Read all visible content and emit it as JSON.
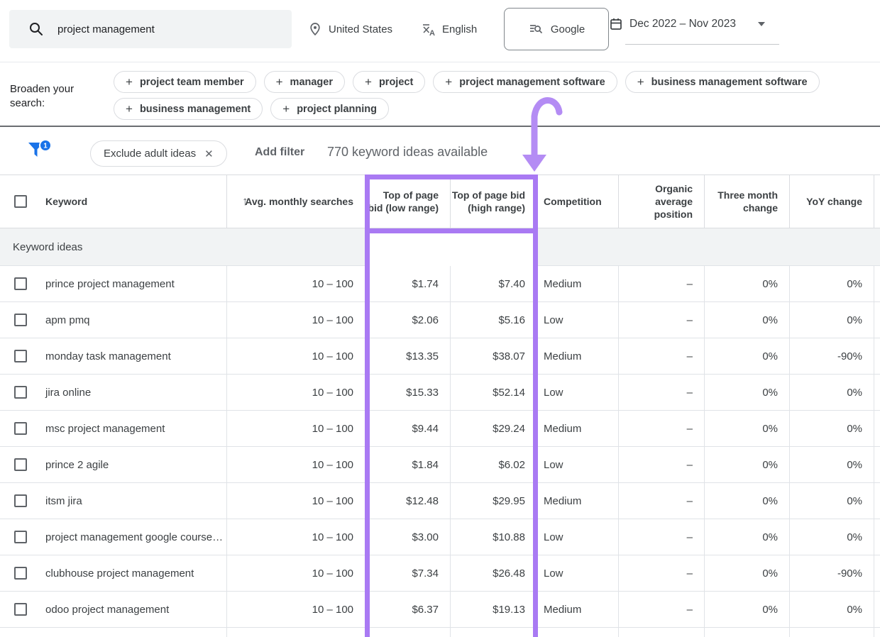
{
  "topbar": {
    "search_value": "project management",
    "location": "United States",
    "language": "English",
    "network": "Google",
    "date_range": "Dec 2022 – Nov 2023"
  },
  "broaden": {
    "label": "Broaden your search:",
    "chips": [
      "project team member",
      "manager",
      "project",
      "project management software",
      "business management software",
      "business management",
      "project planning"
    ]
  },
  "filterbar": {
    "filter_count": "1",
    "exclude_chip_label": "Exclude adult ideas",
    "add_filter_label": "Add filter",
    "ideas_available": "770 keyword ideas available"
  },
  "table": {
    "section_label": "Keyword ideas",
    "columns": [
      "Keyword",
      "Avg. monthly searches",
      "Top of page bid (low range)",
      "Top of page bid (high range)",
      "Competition",
      "Organic average position",
      "Three month change",
      "YoY change"
    ],
    "rows": [
      {
        "keyword": "prince project management",
        "avg": "10 – 100",
        "low": "$1.74",
        "high": "$7.40",
        "comp": "Medium",
        "organic": "–",
        "three": "0%",
        "yoy": "0%"
      },
      {
        "keyword": "apm pmq",
        "avg": "10 – 100",
        "low": "$2.06",
        "high": "$5.16",
        "comp": "Low",
        "organic": "–",
        "three": "0%",
        "yoy": "0%"
      },
      {
        "keyword": "monday task management",
        "avg": "10 – 100",
        "low": "$13.35",
        "high": "$38.07",
        "comp": "Medium",
        "organic": "–",
        "three": "0%",
        "yoy": "-90%"
      },
      {
        "keyword": "jira online",
        "avg": "10 – 100",
        "low": "$15.33",
        "high": "$52.14",
        "comp": "Low",
        "organic": "–",
        "three": "0%",
        "yoy": "0%"
      },
      {
        "keyword": "msc project management",
        "avg": "10 – 100",
        "low": "$9.44",
        "high": "$29.24",
        "comp": "Medium",
        "organic": "–",
        "three": "0%",
        "yoy": "0%"
      },
      {
        "keyword": "prince 2 agile",
        "avg": "10 – 100",
        "low": "$1.84",
        "high": "$6.02",
        "comp": "Low",
        "organic": "–",
        "three": "0%",
        "yoy": "0%"
      },
      {
        "keyword": "itsm jira",
        "avg": "10 – 100",
        "low": "$12.48",
        "high": "$29.95",
        "comp": "Medium",
        "organic": "–",
        "three": "0%",
        "yoy": "0%"
      },
      {
        "keyword": "project management google course…",
        "avg": "10 – 100",
        "low": "$3.00",
        "high": "$10.88",
        "comp": "Low",
        "organic": "–",
        "three": "0%",
        "yoy": "0%"
      },
      {
        "keyword": "clubhouse project management",
        "avg": "10 – 100",
        "low": "$7.34",
        "high": "$26.48",
        "comp": "Low",
        "organic": "–",
        "three": "0%",
        "yoy": "-90%"
      },
      {
        "keyword": "odoo project management",
        "avg": "10 – 100",
        "low": "$6.37",
        "high": "$19.13",
        "comp": "Medium",
        "organic": "–",
        "three": "0%",
        "yoy": "0%"
      }
    ]
  },
  "annotation": {
    "highlight_color": "#a97af3",
    "arrow_color": "#b48cf4"
  },
  "colors": {
    "accent_blue": "#1a73e8",
    "text_dark": "#3c4043",
    "text_gray": "#5f6368"
  }
}
